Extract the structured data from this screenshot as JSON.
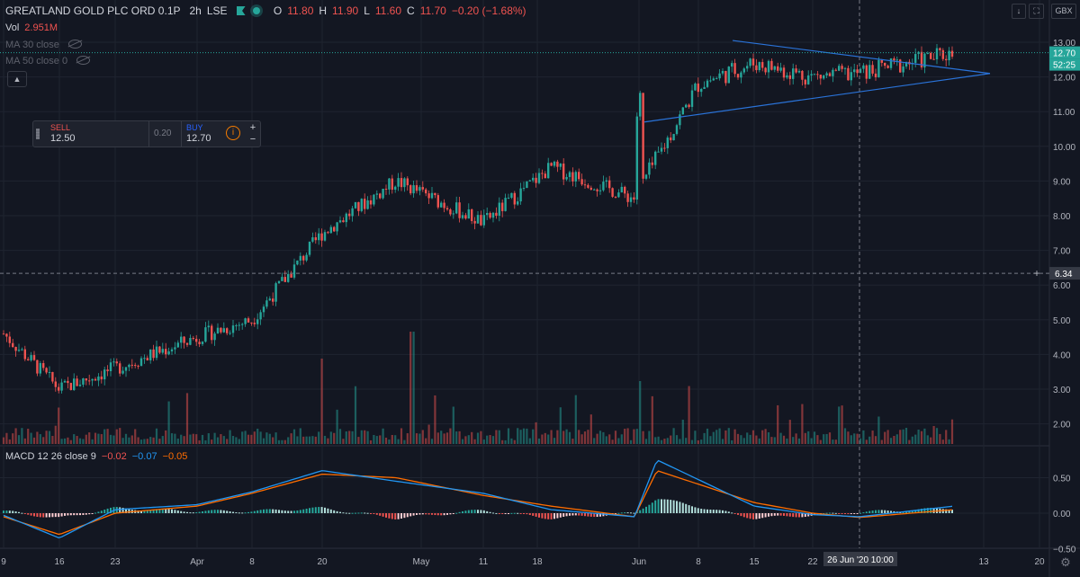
{
  "header": {
    "symbol": "GREATLAND GOLD PLC ORD 0.1P",
    "interval": "2h",
    "exchange": "LSE",
    "ohlc": {
      "o": "11.80",
      "h": "11.90",
      "l": "11.60",
      "c": "11.70",
      "chg": "−0.20 (−1.68%)"
    }
  },
  "volume_legend": {
    "label": "Vol",
    "value": "2.951M"
  },
  "ma_legends": [
    "MA 30 close",
    "MA 50 close 0"
  ],
  "currency_button": "GBX",
  "trade_panel": {
    "sell_label": "SELL",
    "sell_price": "12.50",
    "spread": "0.20",
    "buy_label": "BUY",
    "buy_price": "12.70"
  },
  "macd_legend": {
    "label": "MACD 12 26 close 9",
    "v1": "−0.02",
    "v2": "−0.07",
    "v3": "−0.05"
  },
  "colors": {
    "up": "#26a69a",
    "down": "#ef5350",
    "macd": "#2196f3",
    "signal": "#ff6d00",
    "trend": "#2a73d9",
    "price_line": "#26a69a"
  },
  "chart_data": [
    {
      "type": "candlestick",
      "title": "GREATLAND GOLD PLC ORD 0.1P",
      "y_ticks": [
        "13.00",
        "12.00",
        "11.00",
        "10.00",
        "9.00",
        "8.00",
        "7.00",
        "6.00",
        "5.00",
        "4.00",
        "3.00",
        "2.00"
      ],
      "ylim": [
        1.6,
        13.4
      ],
      "x_ticks": [
        "9",
        "16",
        "23",
        "Apr",
        "8",
        "20",
        "May",
        "11",
        "18",
        "Jun",
        "8",
        "15",
        "22",
        "13",
        "20"
      ],
      "last_price_label": "12.70",
      "countdown_label": "52:25",
      "crosshair_price_label": "6.34",
      "crosshair_time_label": "26 Jun '20  10:00",
      "key_points": [
        {
          "x": "9",
          "close": 4.6
        },
        {
          "x": "16",
          "close": 3.0
        },
        {
          "x": "23",
          "close": 3.6
        },
        {
          "x": "Apr",
          "close": 4.5
        },
        {
          "x": "8",
          "close": 5.0
        },
        {
          "x": "20",
          "close": 7.5
        },
        {
          "x": "May",
          "close": 9.0
        },
        {
          "x": "11",
          "close": 7.8
        },
        {
          "x": "18",
          "close": 9.4
        },
        {
          "x": "Jun",
          "close": 8.5
        },
        {
          "x": "8",
          "close": 11.8
        },
        {
          "x": "15",
          "close": 12.4
        },
        {
          "x": "22",
          "close": 12.0
        },
        {
          "x": "26 Jun",
          "close": 12.1
        },
        {
          "x": "last",
          "close": 12.7
        }
      ],
      "trendlines": [
        {
          "from": {
            "x": "Jun 10",
            "y": 13.05
          },
          "to": {
            "x": "Jul 13",
            "y": 12.1
          }
        },
        {
          "from": {
            "x": "Jun 1",
            "y": 10.7
          },
          "to": {
            "x": "Jul 13",
            "y": 12.1
          }
        }
      ]
    },
    {
      "type": "line",
      "title": "MACD 12 26 close 9",
      "y_ticks": [
        "0.50",
        "0.00",
        "−0.50"
      ],
      "ylim": [
        -0.82,
        0.95
      ],
      "series": [
        {
          "name": "MACD",
          "values": [
            -0.03,
            -0.35,
            0.05,
            0.12,
            0.3,
            0.6,
            0.45,
            0.28,
            0.05,
            -0.05,
            0.75,
            0.1,
            -0.02,
            -0.05,
            0.1
          ]
        },
        {
          "name": "Signal",
          "values": [
            -0.05,
            -0.3,
            0.0,
            0.1,
            0.28,
            0.55,
            0.5,
            0.25,
            0.1,
            -0.05,
            0.6,
            0.15,
            0.0,
            -0.06,
            0.05
          ]
        }
      ]
    }
  ]
}
